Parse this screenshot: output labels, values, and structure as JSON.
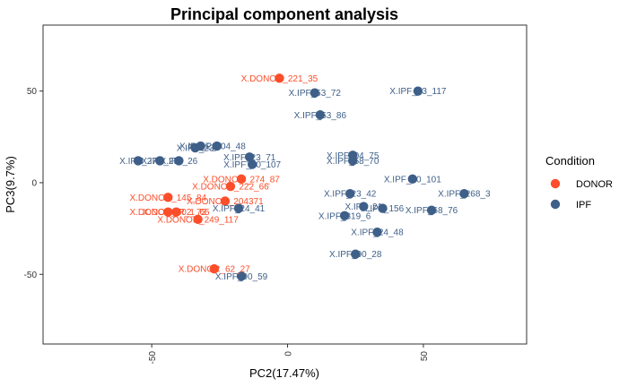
{
  "chart_data": {
    "type": "scatter",
    "title": "Principal component analysis",
    "xlabel": "PC2(17.47%)",
    "ylabel": "PC3(9.7%)",
    "xlim": [
      -90,
      88
    ],
    "ylim": [
      -88,
      86
    ],
    "xticks": [
      -50,
      0,
      50
    ],
    "yticks": [
      -50,
      0,
      50
    ],
    "grid": false,
    "legend": {
      "title": "Condition",
      "position": "right",
      "entries": [
        {
          "name": "DONOR",
          "color": "#fc4e2a"
        },
        {
          "name": "IPF",
          "color": "#3e5f88"
        }
      ]
    },
    "series": [
      {
        "name": "DONOR",
        "color": "#fc4e2a",
        "points": [
          {
            "label": "X.DONOR_221_35",
            "x": -3,
            "y": 57
          },
          {
            "label": "X.DONOR_274_87",
            "x": -17,
            "y": 2
          },
          {
            "label": "X.DONOR_222_66",
            "x": -21,
            "y": -2
          },
          {
            "label": "X.DONOR_145_84",
            "x": -44,
            "y": -8
          },
          {
            "label": "X.DONOR_204371",
            "x": -23,
            "y": -10
          },
          {
            "label": "X.DONOR_302_73",
            "x": -44,
            "y": -16
          },
          {
            "label": "X.DONOR_1_65",
            "x": -41,
            "y": -16
          },
          {
            "label": "X.DONOR_249_117",
            "x": -33,
            "y": -20
          },
          {
            "label": "X.DONOR_62_27",
            "x": -27,
            "y": -47
          }
        ]
      },
      {
        "name": "IPF",
        "color": "#3e5f88",
        "points": [
          {
            "label": "X.IPF_63_117",
            "x": 48,
            "y": 50
          },
          {
            "label": "X.IPF_53_72",
            "x": 10,
            "y": 49
          },
          {
            "label": "X.IPF_53_86",
            "x": 12,
            "y": 37
          },
          {
            "label": "X.IPF_225",
            "x": -32,
            "y": 20
          },
          {
            "label": "X.IPF_204_48",
            "x": -26,
            "y": 20
          },
          {
            "label": "X.IPF_23",
            "x": -34,
            "y": 19
          },
          {
            "label": "X.IPF_04_75",
            "x": 24,
            "y": 15
          },
          {
            "label": "X.IPF_23_71",
            "x": -14,
            "y": 14
          },
          {
            "label": "X.IPF_27",
            "x": -55,
            "y": 12
          },
          {
            "label": "X.IPF_25",
            "x": -47,
            "y": 12
          },
          {
            "label": "X.IPF_26",
            "x": -40,
            "y": 12
          },
          {
            "label": "X.IPF_68_70",
            "x": 24,
            "y": 12
          },
          {
            "label": "X.IPF_20_107",
            "x": -13,
            "y": 10
          },
          {
            "label": "X.IPF_20_101",
            "x": 46,
            "y": 2
          },
          {
            "label": "X.IPF_23_42",
            "x": 23,
            "y": -6
          },
          {
            "label": "X.IPF_268_3",
            "x": 65,
            "y": -6
          },
          {
            "label": "X.IPF_24_41",
            "x": -18,
            "y": -14
          },
          {
            "label": "X.IPF_21",
            "x": 28,
            "y": -13
          },
          {
            "label": "X.IPF_156",
            "x": 35,
            "y": -14
          },
          {
            "label": "X.IPF_68_76",
            "x": 53,
            "y": -15
          },
          {
            "label": "X.IPF_319_6",
            "x": 21,
            "y": -18
          },
          {
            "label": "X.IPF_24_48",
            "x": 33,
            "y": -27
          },
          {
            "label": "X.IPF_90_28",
            "x": 25,
            "y": -39
          },
          {
            "label": "X.IPF_90_59",
            "x": -17,
            "y": -51
          }
        ]
      }
    ]
  }
}
